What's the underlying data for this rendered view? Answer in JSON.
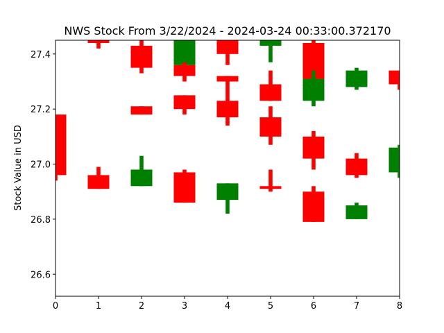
{
  "chart_data": {
    "type": "candlestick",
    "title": "NWS Stock From 3/22/2024 - 2024-03-24 00:33:00.372170",
    "xlabel": "",
    "ylabel": "Stock Value in USD",
    "xlim": [
      0,
      8
    ],
    "ylim": [
      26.52,
      27.45
    ],
    "x_ticks": [
      0,
      1,
      2,
      3,
      4,
      5,
      6,
      7,
      8
    ],
    "y_ticks": [
      26.6,
      26.8,
      27.0,
      27.2,
      27.4
    ],
    "grid": false,
    "colors": {
      "up": "#008000",
      "down": "#ff0000"
    },
    "candles": [
      {
        "x": 0.0,
        "open": 27.18,
        "close": 26.96,
        "high": 27.18,
        "low": 26.94
      },
      {
        "x": 1.0,
        "open": 27.46,
        "close": 27.44,
        "high": 27.47,
        "low": 27.42
      },
      {
        "x": 1.0,
        "open": 26.96,
        "close": 26.91,
        "high": 26.99,
        "low": 26.91
      },
      {
        "x": 2.0,
        "open": 27.43,
        "close": 27.35,
        "high": 27.45,
        "low": 27.33
      },
      {
        "x": 2.0,
        "open": 27.21,
        "close": 27.18,
        "high": 27.21,
        "low": 27.18
      },
      {
        "x": 2.0,
        "open": 26.92,
        "close": 26.98,
        "high": 27.03,
        "low": 26.92
      },
      {
        "x": 3.0,
        "open": 27.36,
        "close": 27.45,
        "high": 27.48,
        "low": 27.33
      },
      {
        "x": 3.0,
        "open": 27.36,
        "close": 27.32,
        "high": 27.37,
        "low": 27.3
      },
      {
        "x": 3.0,
        "open": 27.25,
        "close": 27.2,
        "high": 27.25,
        "low": 27.18
      },
      {
        "x": 3.0,
        "open": 26.97,
        "close": 26.86,
        "high": 26.98,
        "low": 26.86
      },
      {
        "x": 4.0,
        "open": 27.45,
        "close": 27.4,
        "high": 27.47,
        "low": 27.36
      },
      {
        "x": 4.0,
        "open": 27.32,
        "close": 27.3,
        "high": 27.32,
        "low": 27.3
      },
      {
        "x": 4.0,
        "open": 27.23,
        "close": 27.17,
        "high": 27.3,
        "low": 27.14
      },
      {
        "x": 4.0,
        "open": 26.87,
        "close": 26.93,
        "high": 26.93,
        "low": 26.82
      },
      {
        "x": 5.0,
        "open": 27.45,
        "close": 27.45,
        "high": 27.47,
        "low": 27.45
      },
      {
        "x": 5.0,
        "open": 27.43,
        "close": 27.45,
        "high": 27.45,
        "low": 27.37
      },
      {
        "x": 5.0,
        "open": 27.29,
        "close": 27.23,
        "high": 27.34,
        "low": 27.23
      },
      {
        "x": 5.0,
        "open": 27.17,
        "close": 27.1,
        "high": 27.21,
        "low": 27.07
      },
      {
        "x": 5.0,
        "open": 26.92,
        "close": 26.91,
        "high": 26.98,
        "low": 26.9
      },
      {
        "x": 6.0,
        "open": 27.44,
        "close": 27.31,
        "high": 27.45,
        "low": 27.31
      },
      {
        "x": 6.0,
        "open": 27.23,
        "close": 27.31,
        "high": 27.34,
        "low": 27.21
      },
      {
        "x": 6.0,
        "open": 27.1,
        "close": 27.02,
        "high": 27.12,
        "low": 26.98
      },
      {
        "x": 6.0,
        "open": 26.9,
        "close": 26.79,
        "high": 26.92,
        "low": 26.79
      },
      {
        "x": 7.0,
        "open": 27.28,
        "close": 27.34,
        "high": 27.35,
        "low": 27.27
      },
      {
        "x": 7.0,
        "open": 27.02,
        "close": 26.96,
        "high": 27.04,
        "low": 26.95
      },
      {
        "x": 7.0,
        "open": 26.8,
        "close": 26.85,
        "high": 26.86,
        "low": 26.8
      },
      {
        "x": 8.0,
        "open": 27.34,
        "close": 27.29,
        "high": 27.34,
        "low": 27.27
      },
      {
        "x": 8.0,
        "open": 26.97,
        "close": 27.06,
        "high": 27.07,
        "low": 26.95
      }
    ]
  }
}
